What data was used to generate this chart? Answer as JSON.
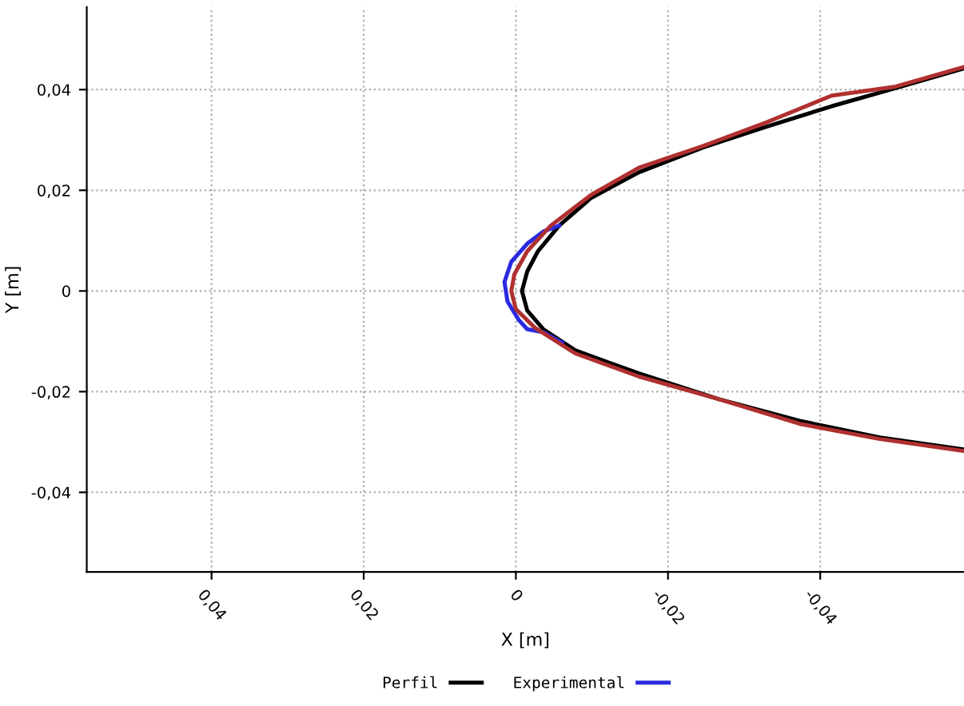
{
  "chart_data": {
    "type": "line",
    "xlabel": "X [m]",
    "ylabel": "Y [m]",
    "xlim": [
      0.0564,
      -0.0589
    ],
    "ylim": [
      -0.0558,
      0.0564
    ],
    "xticks": [
      {
        "value": 0.04,
        "label": "0,04"
      },
      {
        "value": 0.02,
        "label": "0,02"
      },
      {
        "value": 0,
        "label": "0"
      },
      {
        "value": -0.02,
        "label": "-0,02"
      },
      {
        "value": -0.04,
        "label": "-0,04"
      }
    ],
    "yticks": [
      {
        "value": -0.04,
        "label": "-0,04"
      },
      {
        "value": -0.02,
        "label": "-0,02"
      },
      {
        "value": 0,
        "label": "0"
      },
      {
        "value": 0.02,
        "label": "0,02"
      },
      {
        "value": 0.04,
        "label": "0,04"
      }
    ],
    "grid": true,
    "legend": "bottom",
    "line_style": "solid",
    "series": [
      {
        "name": "Perfil",
        "color": "#000000",
        "x": [
          -0.0589,
          -0.0499,
          -0.0415,
          -0.0331,
          -0.0246,
          -0.0162,
          -0.0099,
          -0.0057,
          -0.0029,
          -0.0015,
          -0.0008,
          -0.0015,
          -0.0036,
          -0.0078,
          -0.0162,
          -0.0267,
          -0.0373,
          -0.0478,
          -0.0589
        ],
        "values": [
          0.0442,
          0.0403,
          0.0367,
          0.0327,
          0.0285,
          0.0236,
          0.0185,
          0.013,
          0.0079,
          0.0039,
          0,
          -0.0039,
          -0.0076,
          -0.0118,
          -0.0164,
          -0.0215,
          -0.0258,
          -0.0291,
          -0.0315
        ]
      },
      {
        "name": "Experimental",
        "color": "#2a2ae0",
        "x": [
          -0.0057,
          -0.0036,
          -0.0015,
          0.0006,
          0.0015,
          0.0011,
          -0.0004,
          -0.0015,
          -0.0036,
          -0.0061
        ],
        "values": [
          0.013,
          0.0118,
          0.0094,
          0.0058,
          0.0018,
          -0.0021,
          -0.0058,
          -0.0076,
          -0.0082,
          -0.0103
        ]
      },
      {
        "color": "#b03030",
        "x": [
          -0.0589,
          -0.0499,
          -0.0415,
          -0.0331,
          -0.0246,
          -0.0162,
          -0.0099,
          -0.0046,
          -0.0015,
          0.0002,
          0.0006,
          0,
          -0.0025,
          -0.0078,
          -0.0162,
          -0.0267,
          -0.0373,
          -0.0478,
          -0.0589
        ],
        "values": [
          0.0445,
          0.0406,
          0.0388,
          0.0336,
          0.0288,
          0.0245,
          0.0191,
          0.013,
          0.0079,
          0.0033,
          0,
          -0.0036,
          -0.0073,
          -0.0124,
          -0.017,
          -0.0215,
          -0.0264,
          -0.0294,
          -0.0318
        ]
      }
    ]
  }
}
